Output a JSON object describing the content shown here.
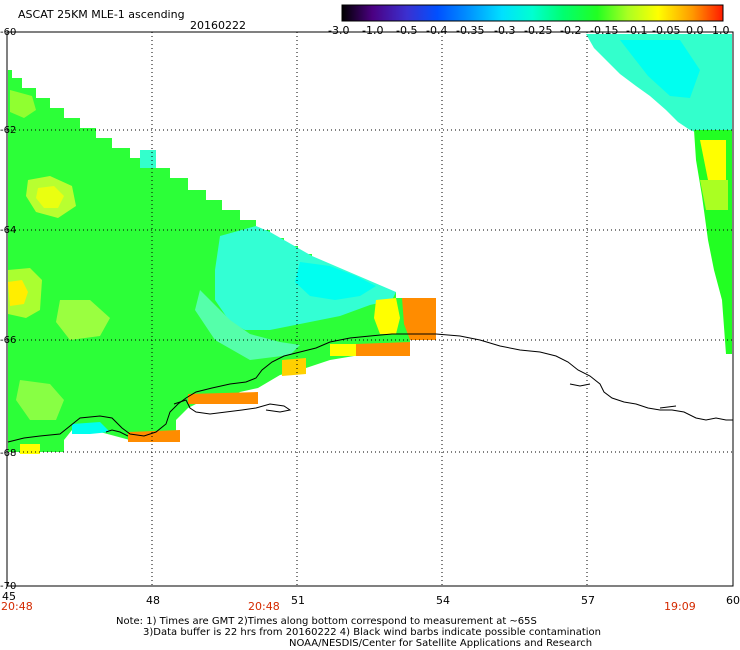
{
  "header": {
    "title": "ASCAT 25KM MLE-1 ascending",
    "date": "20160222"
  },
  "colorbar": {
    "labels": [
      "-3.0",
      "-1.0",
      "-0.5",
      "-0.4",
      "-0.35",
      "-0.3",
      "-0.25",
      "-0.2",
      "-0.15",
      "-0.1",
      "-0.05",
      "0.0",
      "1.0"
    ]
  },
  "axes": {
    "y_labels": [
      "-60",
      "-62",
      "-64",
      "-66",
      "-68",
      "-70"
    ],
    "x_labels": [
      "45",
      "48",
      "51",
      "54",
      "57",
      "60"
    ],
    "time_labels": [
      "20:48",
      "20:48",
      "19:09"
    ]
  },
  "notes": {
    "line1": "Note: 1) Times are GMT 2)Times along bottom correspond to measurement at ~65S",
    "line2": "3)Data buffer is 22 hrs from 20160222 4) Black wind barbs indicate possible contamination",
    "line3": "NOAA/NESDIS/Center for Satellite Applications and Research"
  },
  "colors": {
    "cyan": "#00ffee",
    "light_cyan": "#33ffcc",
    "green_cyan": "#44ff88",
    "green": "#22ff22",
    "yellow_green": "#aaff22",
    "yellow": "#ffff00",
    "orange": "#ff8c00",
    "red": "#ff2200"
  }
}
